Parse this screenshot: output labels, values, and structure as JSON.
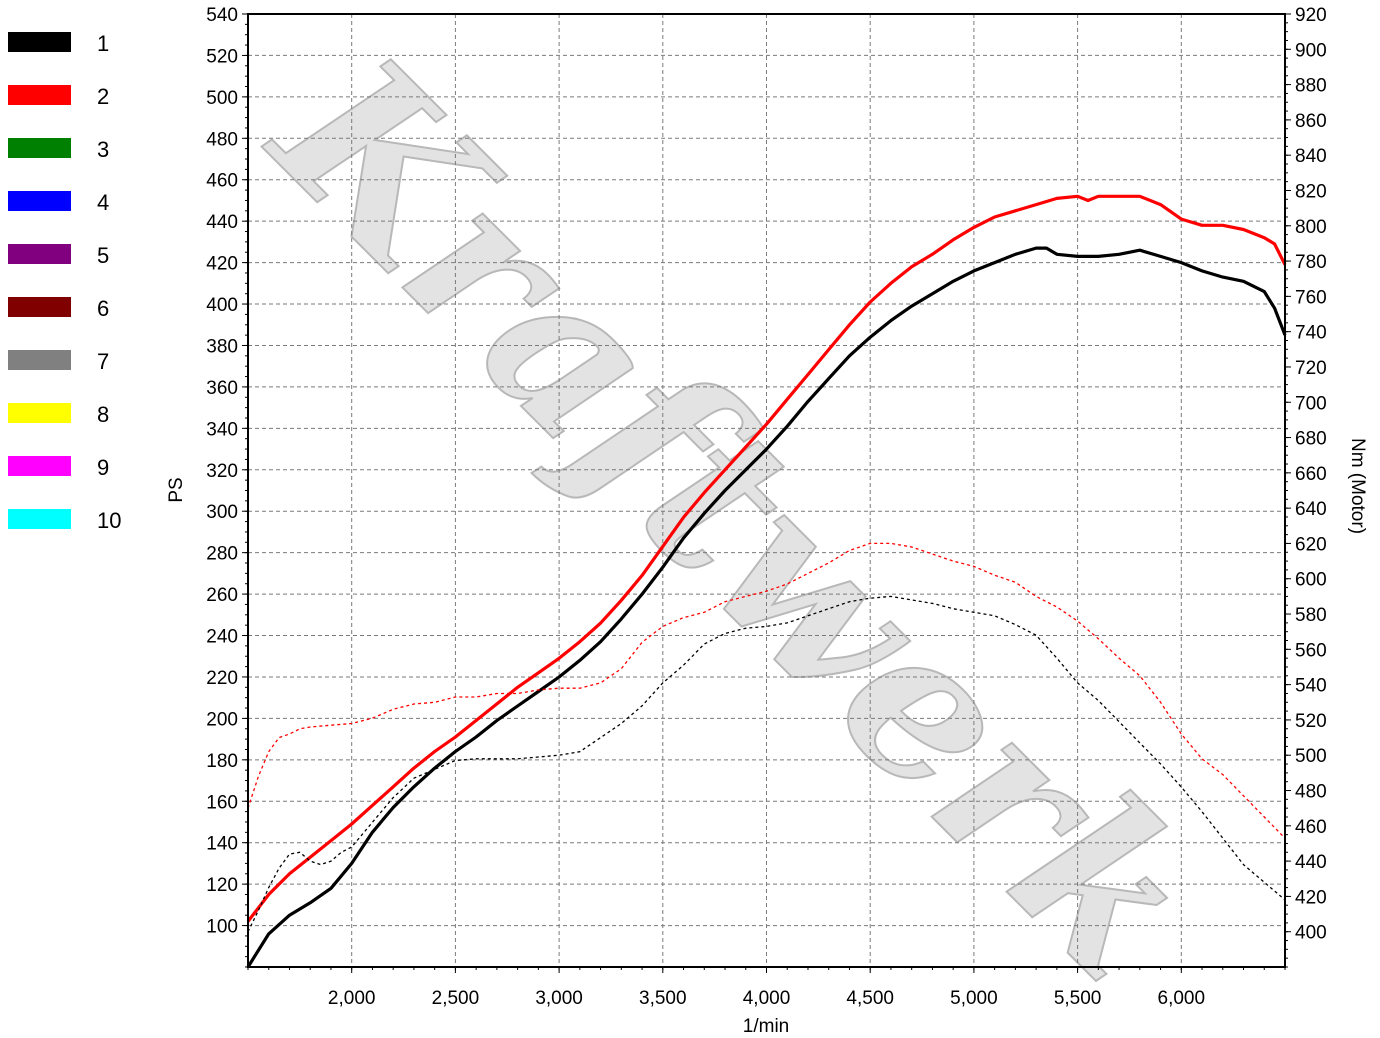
{
  "legend": [
    {
      "label": "1",
      "color": "#000000"
    },
    {
      "label": "2",
      "color": "#ff0000"
    },
    {
      "label": "3",
      "color": "#008000"
    },
    {
      "label": "4",
      "color": "#0000ff"
    },
    {
      "label": "5",
      "color": "#800080"
    },
    {
      "label": "6",
      "color": "#800000"
    },
    {
      "label": "7",
      "color": "#808080"
    },
    {
      "label": "8",
      "color": "#ffff00"
    },
    {
      "label": "9",
      "color": "#ff00ff"
    },
    {
      "label": "10",
      "color": "#00ffff"
    }
  ],
  "watermark": "Kraftwerk",
  "chart_data": {
    "type": "line",
    "xlabel": "1/min",
    "ylabel": "PS",
    "y2label": "Nm (Motor)",
    "xlim": [
      1500,
      6500
    ],
    "ylim": [
      80,
      540
    ],
    "y2lim": [
      380,
      920
    ],
    "xticks": [
      2000,
      2500,
      3000,
      3500,
      4000,
      4500,
      5000,
      5500,
      6000
    ],
    "xtick_labels": [
      "2,000",
      "2,500",
      "3,000",
      "3,500",
      "4,000",
      "4,500",
      "5,000",
      "5,500",
      "6,000"
    ],
    "yticks": [
      100,
      120,
      140,
      160,
      180,
      200,
      220,
      240,
      260,
      280,
      300,
      320,
      340,
      360,
      380,
      400,
      420,
      440,
      460,
      480,
      500,
      520,
      540
    ],
    "y2ticks": [
      400,
      420,
      440,
      460,
      480,
      500,
      520,
      540,
      560,
      580,
      600,
      620,
      640,
      660,
      680,
      700,
      720,
      740,
      760,
      780,
      800,
      820,
      840,
      860,
      880,
      900,
      920
    ],
    "grid": true,
    "legend_position": "left",
    "series": [
      {
        "name": "1",
        "color": "#000000",
        "style": "solid",
        "axis": "left",
        "x": [
          1500,
          1600,
          1700,
          1800,
          1900,
          2000,
          2100,
          2200,
          2300,
          2400,
          2500,
          2600,
          2700,
          2800,
          2900,
          3000,
          3100,
          3200,
          3300,
          3400,
          3500,
          3600,
          3700,
          3800,
          3900,
          4000,
          4100,
          4200,
          4300,
          4400,
          4500,
          4600,
          4700,
          4800,
          4900,
          5000,
          5100,
          5200,
          5300,
          5350,
          5400,
          5500,
          5600,
          5700,
          5800,
          5900,
          6000,
          6100,
          6200,
          6300,
          6400,
          6450,
          6500
        ],
        "y": [
          80,
          96,
          105,
          111,
          118,
          130,
          145,
          157,
          167,
          176,
          184,
          191,
          199,
          206,
          213,
          220,
          228,
          237,
          248,
          260,
          273,
          287,
          299,
          310,
          320,
          330,
          341,
          353,
          364,
          375,
          384,
          392,
          399,
          405,
          411,
          416,
          420,
          424,
          427,
          427,
          424,
          423,
          423,
          424,
          426,
          423,
          420,
          416,
          413,
          411,
          406,
          398,
          385
        ]
      },
      {
        "name": "2",
        "color": "#ff0000",
        "style": "solid",
        "axis": "left",
        "x": [
          1500,
          1600,
          1700,
          1800,
          1900,
          2000,
          2100,
          2200,
          2300,
          2400,
          2500,
          2600,
          2700,
          2800,
          2900,
          3000,
          3100,
          3200,
          3300,
          3400,
          3500,
          3600,
          3700,
          3800,
          3900,
          4000,
          4100,
          4200,
          4300,
          4400,
          4500,
          4600,
          4700,
          4800,
          4900,
          5000,
          5100,
          5200,
          5300,
          5400,
          5500,
          5550,
          5600,
          5700,
          5800,
          5900,
          6000,
          6100,
          6200,
          6300,
          6400,
          6450,
          6500
        ],
        "y": [
          102,
          115,
          125,
          133,
          141,
          149,
          158,
          167,
          176,
          184,
          191,
          199,
          207,
          215,
          222,
          229,
          237,
          246,
          257,
          269,
          283,
          297,
          309,
          320,
          331,
          342,
          354,
          366,
          378,
          390,
          401,
          410,
          418,
          424,
          431,
          437,
          442,
          445,
          448,
          451,
          452,
          450,
          452,
          452,
          452,
          448,
          441,
          438,
          438,
          436,
          432,
          429,
          419
        ]
      },
      {
        "name": "1",
        "color": "#000000",
        "style": "dashed",
        "axis": "right",
        "x": [
          1500,
          1550,
          1600,
          1650,
          1700,
          1750,
          1800,
          1850,
          1900,
          1950,
          2000,
          2050,
          2100,
          2200,
          2300,
          2400,
          2500,
          2600,
          2700,
          2800,
          2900,
          3000,
          3100,
          3200,
          3300,
          3400,
          3500,
          3600,
          3700,
          3800,
          3900,
          4000,
          4100,
          4200,
          4300,
          4400,
          4500,
          4600,
          4700,
          4800,
          4900,
          5000,
          5100,
          5200,
          5300,
          5400,
          5500,
          5600,
          5700,
          5800,
          5900,
          6000,
          6100,
          6200,
          6300,
          6400,
          6500
        ],
        "y": [
          400,
          412,
          425,
          436,
          444,
          445,
          440,
          438,
          440,
          445,
          448,
          455,
          462,
          476,
          487,
          492,
          497,
          498,
          498,
          498,
          499,
          500,
          502,
          510,
          518,
          528,
          541,
          551,
          563,
          569,
          572,
          573,
          575,
          579,
          583,
          587,
          589,
          590,
          588,
          586,
          583,
          581,
          579,
          574,
          568,
          555,
          541,
          531,
          519,
          507,
          495,
          482,
          468,
          453,
          438,
          428,
          418
        ]
      },
      {
        "name": "2",
        "color": "#ff0000",
        "style": "dashed",
        "axis": "right",
        "x": [
          1500,
          1550,
          1600,
          1650,
          1700,
          1750,
          1800,
          1900,
          2000,
          2100,
          2200,
          2300,
          2400,
          2500,
          2600,
          2700,
          2800,
          2900,
          3000,
          3100,
          3200,
          3300,
          3400,
          3500,
          3600,
          3700,
          3800,
          3900,
          4000,
          4100,
          4200,
          4300,
          4400,
          4500,
          4600,
          4700,
          4800,
          4900,
          5000,
          5100,
          5200,
          5300,
          5400,
          5500,
          5600,
          5700,
          5800,
          5900,
          6000,
          6100,
          6200,
          6300,
          6400,
          6500
        ],
        "y": [
          470,
          488,
          502,
          510,
          512,
          515,
          516,
          517,
          518,
          521,
          526,
          529,
          530,
          533,
          533,
          535,
          535,
          537,
          538,
          538,
          541,
          549,
          564,
          573,
          578,
          581,
          587,
          590,
          593,
          597,
          603,
          609,
          616,
          620,
          620,
          618,
          614,
          610,
          607,
          602,
          598,
          590,
          584,
          576,
          566,
          555,
          545,
          530,
          512,
          498,
          489,
          477,
          465,
          453
        ]
      }
    ]
  }
}
